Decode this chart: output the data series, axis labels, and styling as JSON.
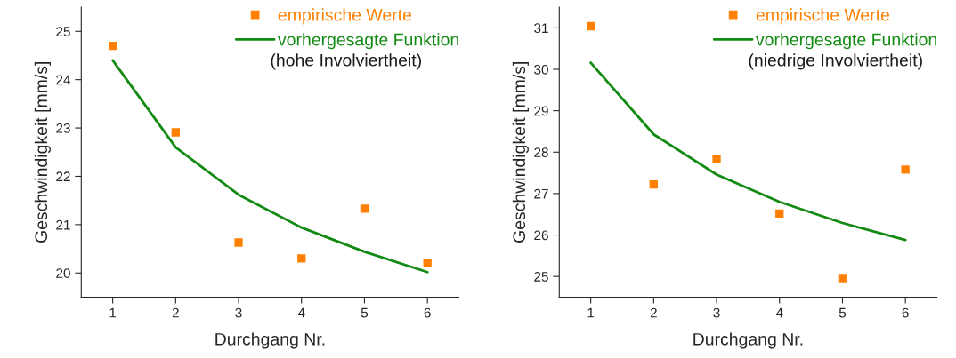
{
  "chart_data": [
    {
      "type": "scatter",
      "xlabel": "Durchgang Nr.",
      "ylabel": "Geschwindigkeit [mm/s]",
      "x": [
        1,
        2,
        3,
        4,
        5,
        6
      ],
      "xlim": [
        0.5,
        6.5
      ],
      "xticks": [
        1,
        2,
        3,
        4,
        5,
        6
      ],
      "ylim": [
        19.5,
        25.5
      ],
      "yticks": [
        20,
        21,
        22,
        23,
        24,
        25
      ],
      "grid": false,
      "legend": "top right",
      "annotations": [
        "(hohe Involviertheit)"
      ],
      "series": [
        {
          "name": "empirische Werte",
          "marker": "square",
          "color": "#ff8000",
          "values": [
            24.7,
            22.91,
            20.63,
            20.3,
            21.33,
            20.2
          ]
        },
        {
          "name": "vorhergesagte Funktion",
          "type": "line",
          "marker": "none",
          "line_style": "solid",
          "color": "#138a13",
          "values": [
            24.4,
            22.6,
            21.62,
            20.94,
            20.44,
            20.02
          ]
        }
      ]
    },
    {
      "type": "scatter",
      "xlabel": "Durchgang Nr.",
      "ylabel": "Geschwindigkeit [mm/s]",
      "x": [
        1,
        2,
        3,
        4,
        5,
        6
      ],
      "xlim": [
        0.5,
        6.5
      ],
      "xticks": [
        1,
        2,
        3,
        4,
        5,
        6
      ],
      "ylim": [
        24.5,
        31.5
      ],
      "yticks": [
        25,
        26,
        27,
        28,
        29,
        30,
        31
      ],
      "grid": false,
      "legend": "top right",
      "annotations": [
        "(niedrige Involviertheit)"
      ],
      "series": [
        {
          "name": "empirische Werte",
          "marker": "square",
          "color": "#ff8000",
          "values": [
            31.04,
            27.22,
            27.83,
            26.52,
            24.94,
            27.58
          ]
        },
        {
          "name": "vorhergesagte Funktion",
          "type": "line",
          "marker": "none",
          "line_style": "solid",
          "color": "#138a13",
          "values": [
            30.16,
            28.43,
            27.46,
            26.8,
            26.29,
            25.88
          ]
        }
      ]
    }
  ]
}
